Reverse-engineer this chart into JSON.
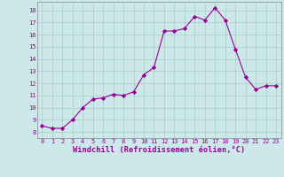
{
  "x": [
    0,
    1,
    2,
    3,
    4,
    5,
    6,
    7,
    8,
    9,
    10,
    11,
    12,
    13,
    14,
    15,
    16,
    17,
    18,
    19,
    20,
    21,
    22,
    23
  ],
  "y": [
    8.5,
    8.3,
    8.3,
    9.0,
    10.0,
    10.7,
    10.8,
    11.1,
    11.0,
    11.3,
    12.7,
    13.3,
    16.3,
    16.3,
    16.5,
    17.5,
    17.2,
    18.2,
    17.2,
    14.8,
    12.5,
    11.5,
    11.8,
    11.8
  ],
  "line_color": "#990099",
  "marker": "D",
  "marker_size": 2.2,
  "bg_color": "#cce8e8",
  "grid_color": "#aacccc",
  "xlabel": "Windchill (Refroidissement éolien,°C)",
  "xlabel_color": "#990099",
  "tick_color": "#990099",
  "ylim": [
    7.5,
    18.7
  ],
  "xlim": [
    -0.5,
    23.5
  ],
  "yticks": [
    8,
    9,
    10,
    11,
    12,
    13,
    14,
    15,
    16,
    17,
    18
  ],
  "xticks": [
    0,
    1,
    2,
    3,
    4,
    5,
    6,
    7,
    8,
    9,
    10,
    11,
    12,
    13,
    14,
    15,
    16,
    17,
    18,
    19,
    20,
    21,
    22,
    23
  ],
  "tick_fontsize": 5.0,
  "xlabel_fontsize": 6.2,
  "linewidth": 0.8
}
